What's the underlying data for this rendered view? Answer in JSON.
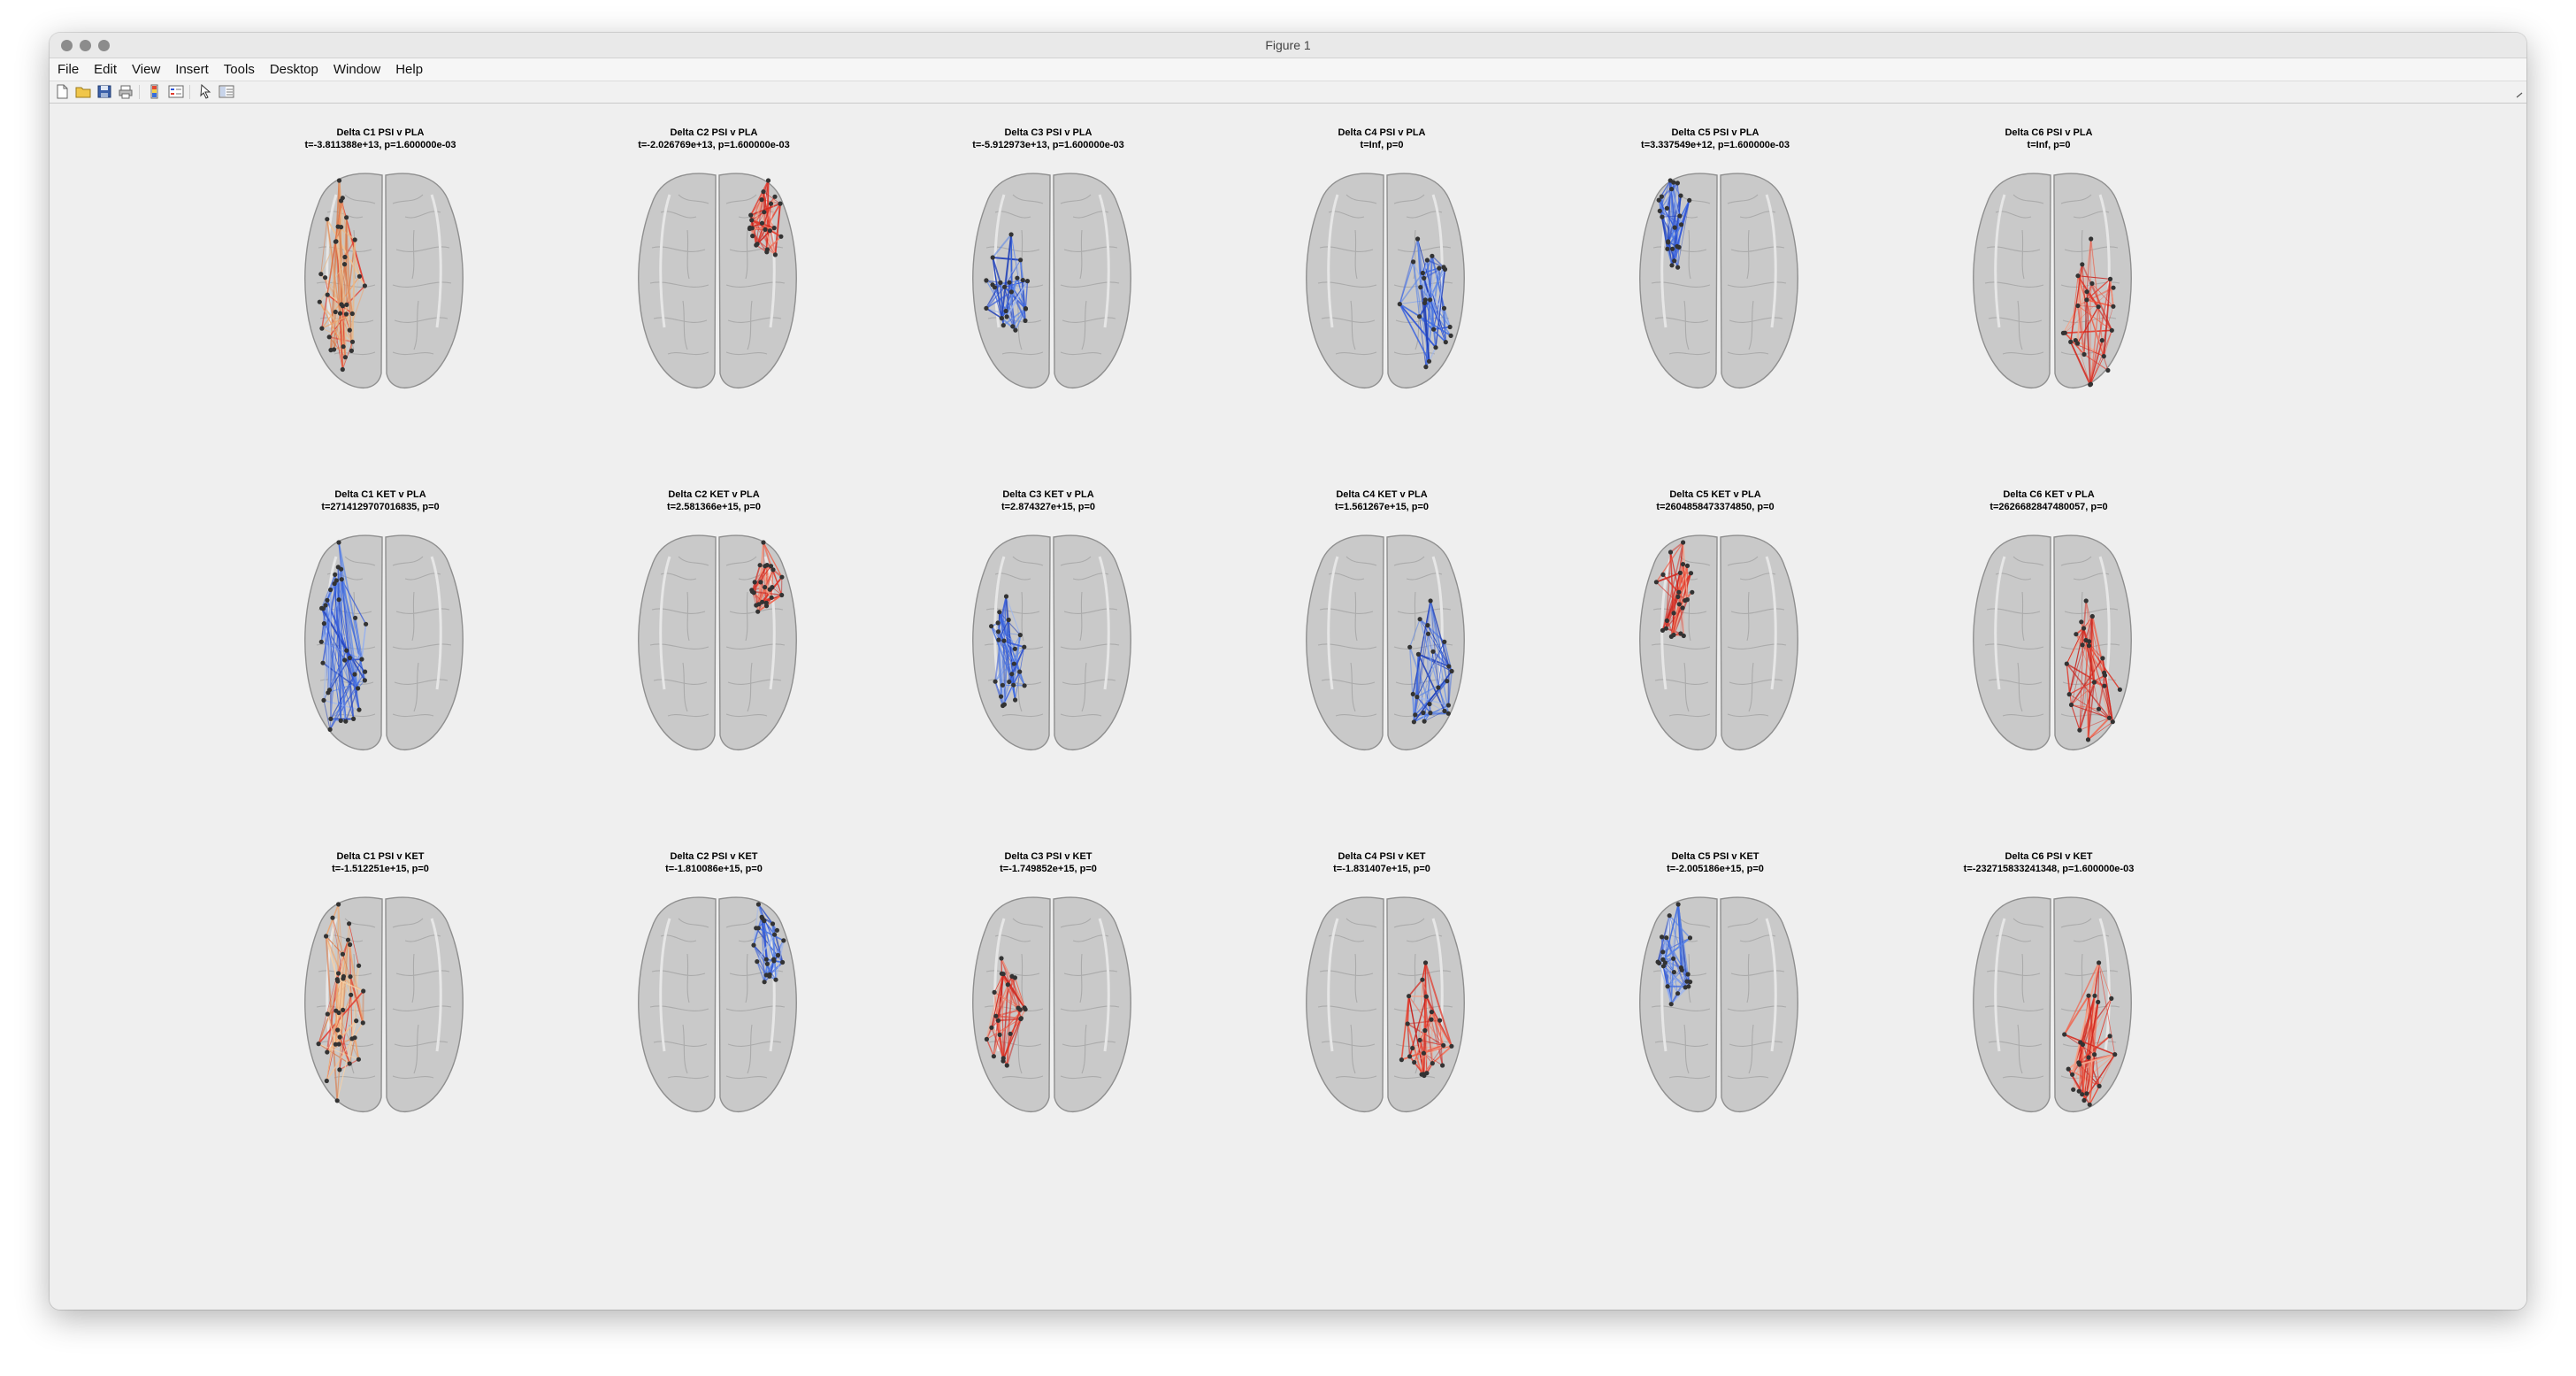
{
  "window": {
    "title": "Figure 1"
  },
  "menu": [
    "File",
    "Edit",
    "View",
    "Insert",
    "Tools",
    "Desktop",
    "Window",
    "Help"
  ],
  "toolbar": [
    {
      "name": "new-figure-icon"
    },
    {
      "name": "open-file-icon"
    },
    {
      "name": "save-icon"
    },
    {
      "name": "print-icon"
    },
    {
      "name": "colorbar-icon"
    },
    {
      "name": "legend-icon"
    },
    {
      "name": "pointer-icon"
    },
    {
      "name": "property-inspector-icon"
    }
  ],
  "colors": {
    "window_bg": "#efefef",
    "positive": "#e23b2e",
    "negative": "#2f55d8",
    "brain": "#c9c9c9"
  },
  "rows": [
    {
      "panels": [
        {
          "title": "Delta C1 PSI v PLA",
          "stats": "t=-3.811388e+13, p=1.600000e-03",
          "region": "C1",
          "tone": "mixed-warm"
        },
        {
          "title": "Delta C2 PSI v PLA",
          "stats": "t=-2.026769e+13, p=1.600000e-03",
          "region": "C2",
          "tone": "red"
        },
        {
          "title": "Delta C3 PSI v PLA",
          "stats": "t=-5.912973e+13, p=1.600000e-03",
          "region": "C3",
          "tone": "blue"
        },
        {
          "title": "Delta C4 PSI v PLA",
          "stats": "t=Inf, p=0",
          "region": "C4",
          "tone": "blue"
        },
        {
          "title": "Delta C5 PSI v PLA",
          "stats": "t=3.337549e+12, p=1.600000e-03",
          "region": "C5",
          "tone": "blue"
        },
        {
          "title": "Delta C6 PSI v PLA",
          "stats": "t=Inf, p=0",
          "region": "C6",
          "tone": "red"
        }
      ]
    },
    {
      "panels": [
        {
          "title": "Delta C1 KET v PLA",
          "stats": "t=2714129707016835, p=0",
          "region": "C1",
          "tone": "blue"
        },
        {
          "title": "Delta C2 KET v PLA",
          "stats": "t=2.581366e+15, p=0",
          "region": "C2",
          "tone": "red"
        },
        {
          "title": "Delta C3 KET v PLA",
          "stats": "t=2.874327e+15, p=0",
          "region": "C3",
          "tone": "blue"
        },
        {
          "title": "Delta C4 KET v PLA",
          "stats": "t=1.561267e+15, p=0",
          "region": "C4",
          "tone": "blue"
        },
        {
          "title": "Delta C5 KET v PLA",
          "stats": "t=2604858473374850, p=0",
          "region": "C5",
          "tone": "red"
        },
        {
          "title": "Delta C6 KET v PLA",
          "stats": "t=2626682847480057, p=0",
          "region": "C6",
          "tone": "red"
        }
      ]
    },
    {
      "panels": [
        {
          "title": "Delta C1 PSI v KET",
          "stats": "t=-1.512251e+15, p=0",
          "region": "C1",
          "tone": "mixed-warm"
        },
        {
          "title": "Delta C2 PSI v KET",
          "stats": "t=-1.810086e+15, p=0",
          "region": "C2",
          "tone": "blue"
        },
        {
          "title": "Delta C3 PSI v KET",
          "stats": "t=-1.749852e+15, p=0",
          "region": "C3",
          "tone": "red"
        },
        {
          "title": "Delta C4 PSI v KET",
          "stats": "t=-1.831407e+15, p=0",
          "region": "C4",
          "tone": "red"
        },
        {
          "title": "Delta C5 PSI v KET",
          "stats": "t=-2.005186e+15, p=0",
          "region": "C5",
          "tone": "blue"
        },
        {
          "title": "Delta C6 PSI v KET",
          "stats": "t=-232715833241348, p=1.600000e-03",
          "region": "C6",
          "tone": "red"
        }
      ]
    }
  ]
}
